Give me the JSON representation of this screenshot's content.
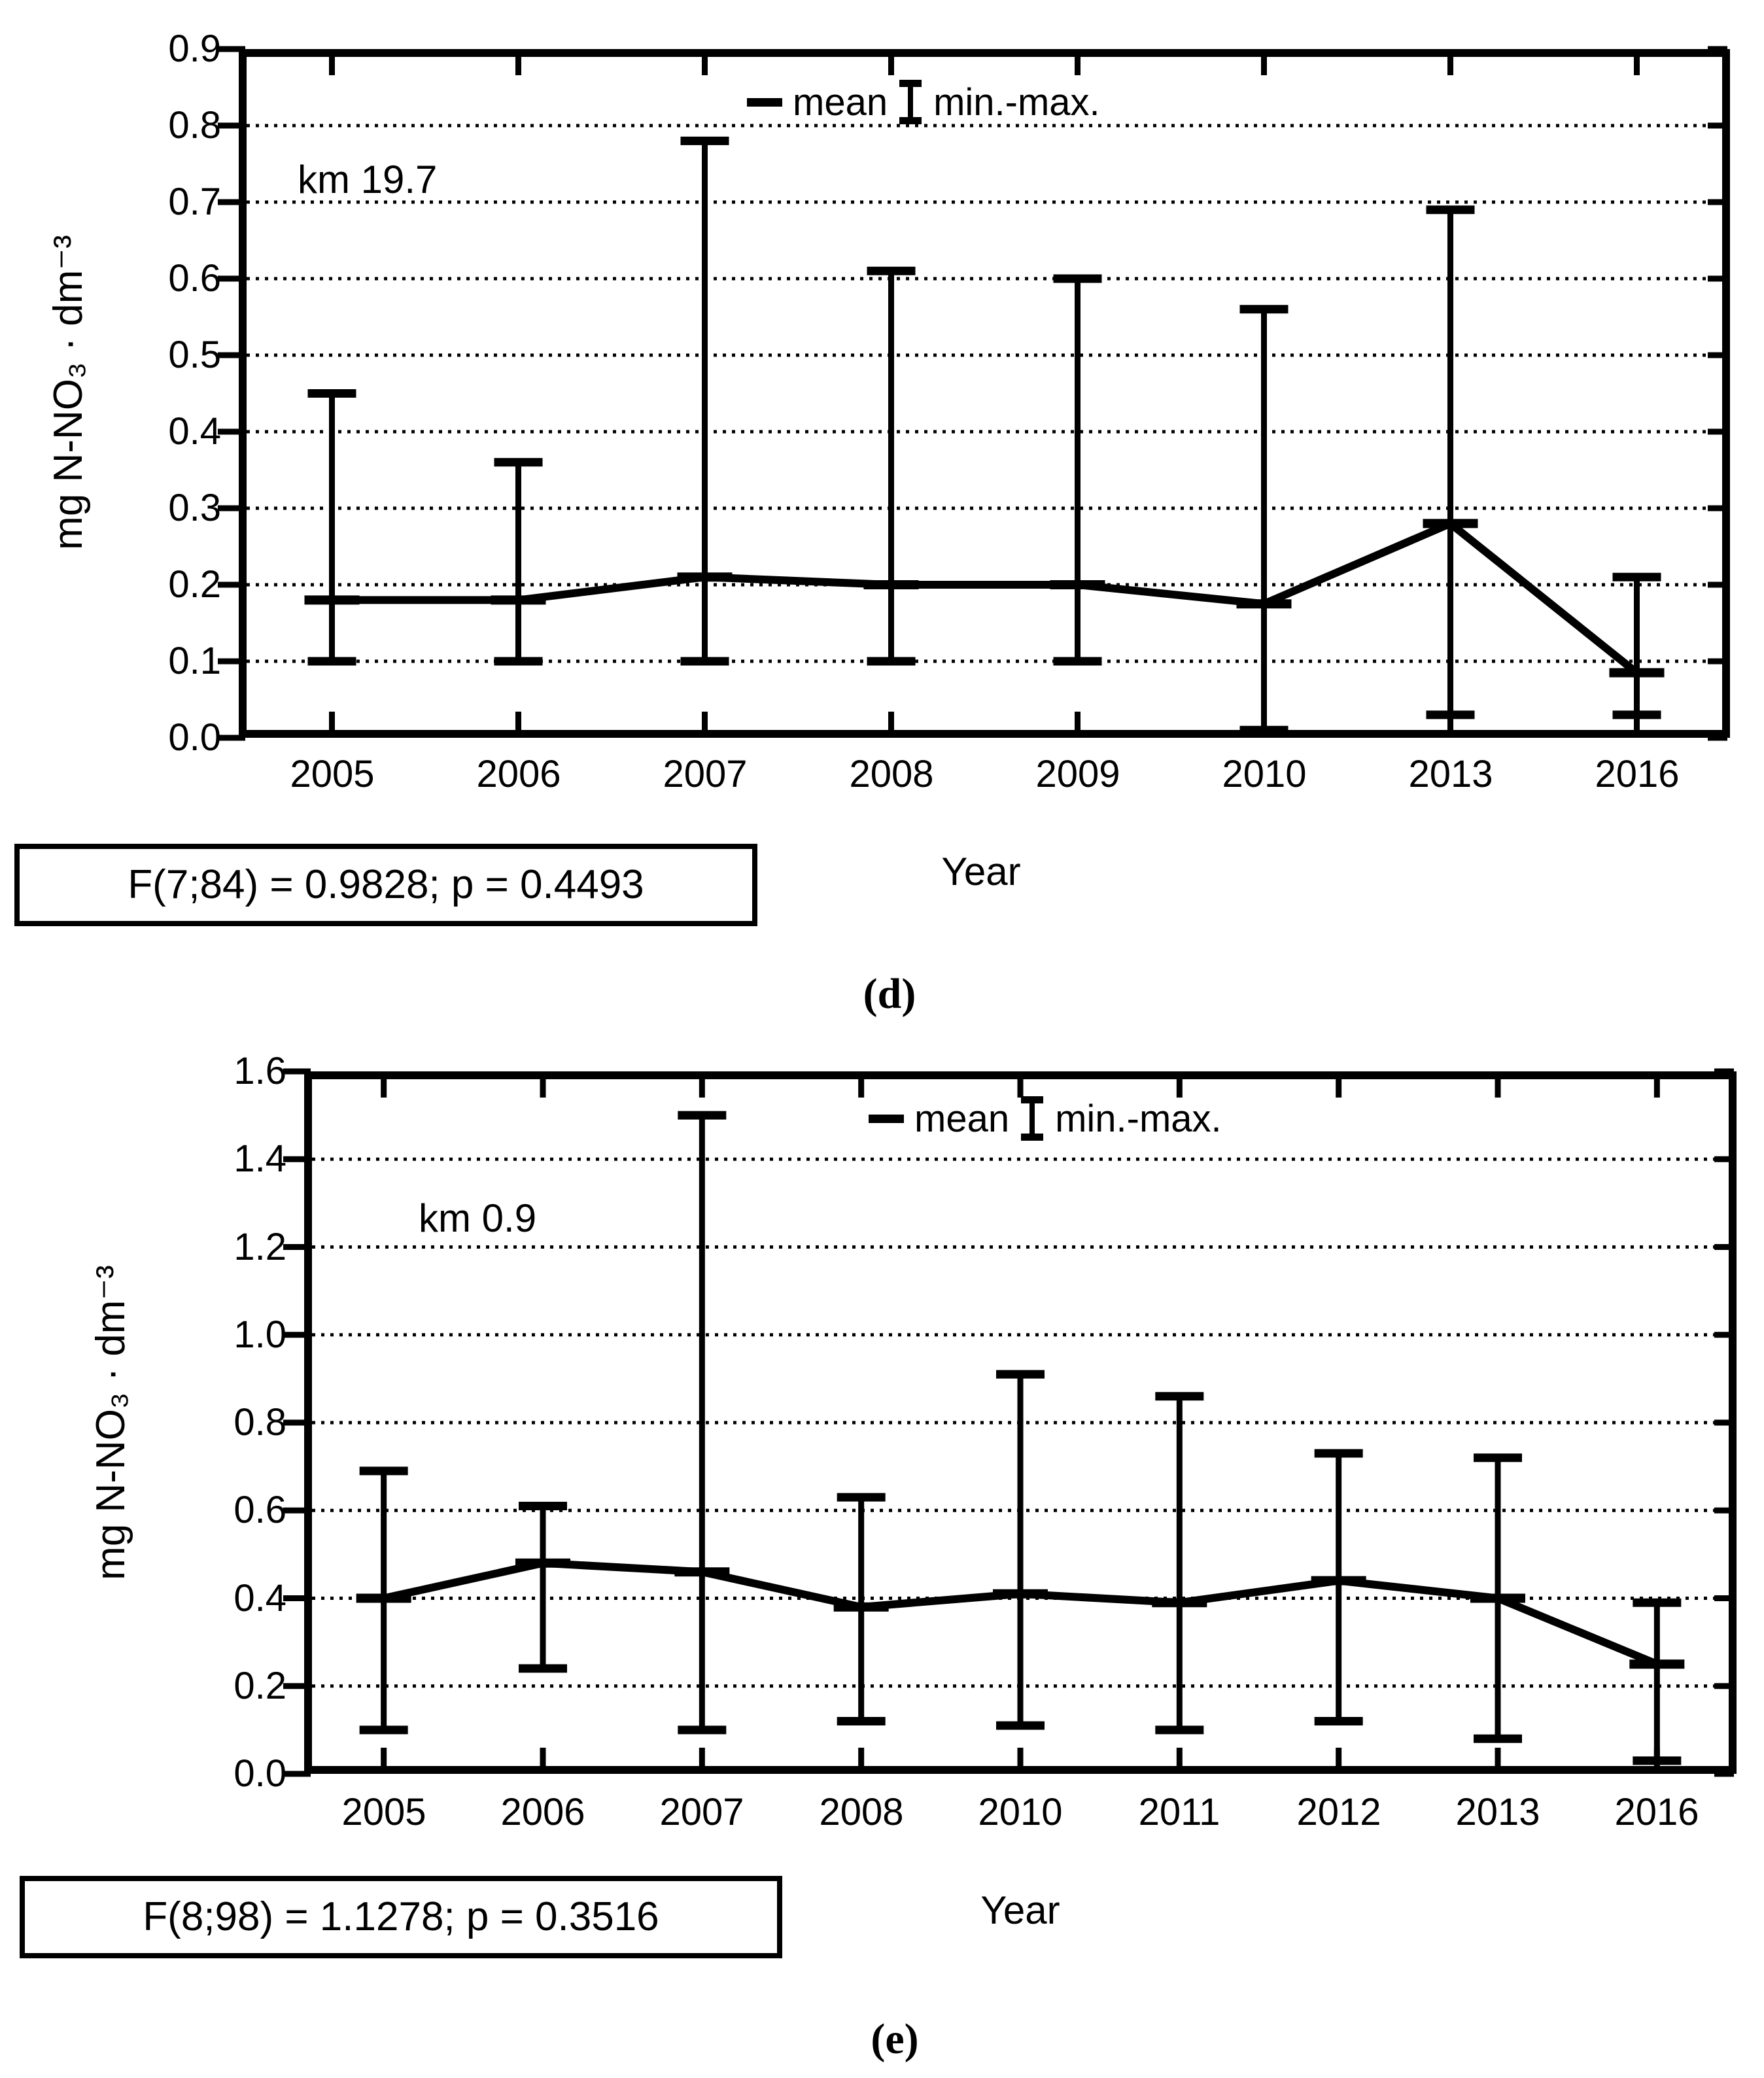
{
  "figure": {
    "background": "#ffffff",
    "ink_color": "#000000"
  },
  "chart_data": [
    {
      "type": "line",
      "panel_label": "(d)",
      "annotation": "km 19.7",
      "xlabel": "Year",
      "ylabel": "mg N-NO₃ · dm⁻³",
      "ylim": [
        0.0,
        0.9
      ],
      "ytick_step": 0.1,
      "grid": "horizontal-dotted",
      "legend": {
        "position": "top-center",
        "mean_label": "mean",
        "minmax_label": "min.-max."
      },
      "stats": "F(7;84) = 0.9828; p = 0.4493",
      "categories": [
        "2005",
        "2006",
        "2007",
        "2008",
        "2009",
        "2010",
        "2013",
        "2016"
      ],
      "series": [
        {
          "name": "mean",
          "values": [
            0.18,
            0.18,
            0.21,
            0.2,
            0.2,
            0.175,
            0.28,
            0.085
          ]
        },
        {
          "name": "min",
          "values": [
            0.1,
            0.1,
            0.1,
            0.1,
            0.1,
            0.01,
            0.03,
            0.03
          ]
        },
        {
          "name": "max",
          "values": [
            0.45,
            0.36,
            0.78,
            0.61,
            0.6,
            0.56,
            0.69,
            0.21
          ]
        }
      ]
    },
    {
      "type": "line",
      "panel_label": "(e)",
      "annotation": "km 0.9",
      "xlabel": "Year",
      "ylabel": "mg N-NO₃ · dm⁻³",
      "ylim": [
        0.0,
        1.6
      ],
      "ytick_step": 0.2,
      "grid": "horizontal-dotted",
      "legend": {
        "position": "top-center",
        "mean_label": "mean",
        "minmax_label": "min.-max."
      },
      "stats": "F(8;98) = 1.1278; p = 0.3516",
      "categories": [
        "2005",
        "2006",
        "2007",
        "2008",
        "2010",
        "2011",
        "2012",
        "2013",
        "2016"
      ],
      "series": [
        {
          "name": "mean",
          "values": [
            0.4,
            0.48,
            0.46,
            0.38,
            0.41,
            0.39,
            0.44,
            0.4,
            0.25
          ]
        },
        {
          "name": "min",
          "values": [
            0.1,
            0.24,
            0.1,
            0.12,
            0.11,
            0.1,
            0.12,
            0.08,
            0.03
          ]
        },
        {
          "name": "max",
          "values": [
            0.69,
            0.61,
            1.5,
            0.63,
            0.91,
            0.86,
            0.73,
            0.72,
            0.39
          ]
        }
      ]
    }
  ]
}
